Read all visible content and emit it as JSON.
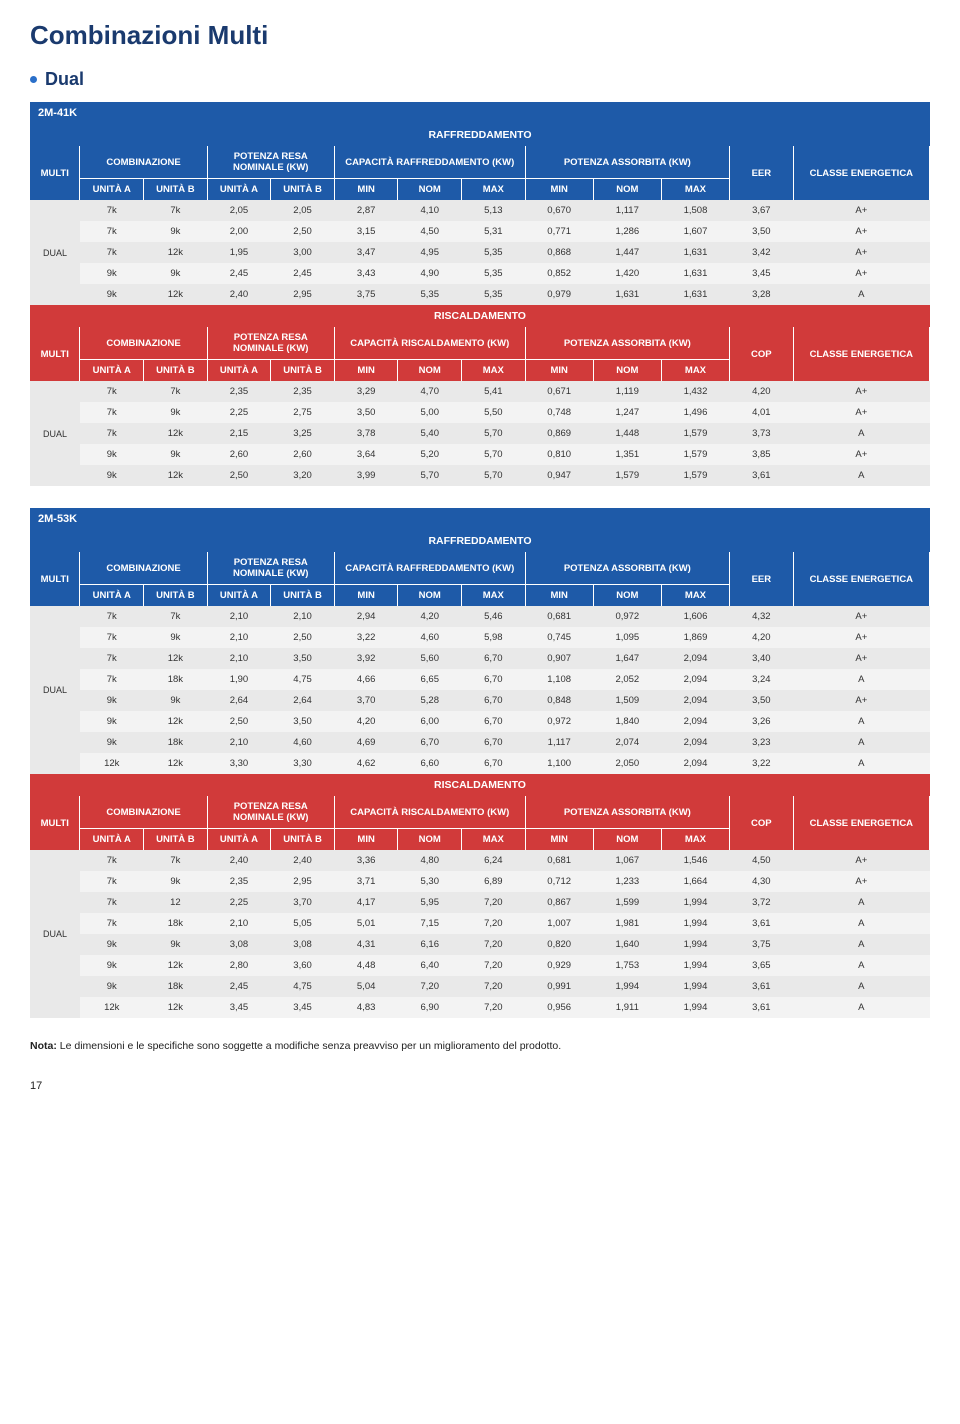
{
  "page": {
    "title": "Combinazioni Multi",
    "subtitle": "Dual",
    "note_bold": "Nota:",
    "note_text": " Le dimensioni e le specifiche sono soggette a modifiche senza preavviso per un miglioramento del prodotto.",
    "page_num": "17"
  },
  "labels": {
    "multi": "MULTI",
    "comb": "COMBINAZIONE",
    "resa": "POTENZA RESA NOMINALE (KW)",
    "cap_cool": "CAPACITÀ RAFFREDDAMENTO (KW)",
    "cap_heat": "CAPACITÀ RISCALDAMENTO (KW)",
    "absorb": "POTENZA ASSORBITA (KW)",
    "eer": "EER",
    "cop": "COP",
    "class": "CLASSE ENERGETICA",
    "unitA": "UNITÀ A",
    "unitB": "UNITÀ B",
    "min": "MIN",
    "nom": "NOM",
    "max": "MAX",
    "raffr": "RAFFREDDAMENTO",
    "risc": "RISCALDAMENTO",
    "dual": "DUAL"
  },
  "tables": [
    {
      "model": "2M-41K",
      "cool_rows": [
        [
          "7k",
          "7k",
          "2,05",
          "2,05",
          "2,87",
          "4,10",
          "5,13",
          "0,670",
          "1,117",
          "1,508",
          "3,67",
          "A+"
        ],
        [
          "7k",
          "9k",
          "2,00",
          "2,50",
          "3,15",
          "4,50",
          "5,31",
          "0,771",
          "1,286",
          "1,607",
          "3,50",
          "A+"
        ],
        [
          "7k",
          "12k",
          "1,95",
          "3,00",
          "3,47",
          "4,95",
          "5,35",
          "0,868",
          "1,447",
          "1,631",
          "3,42",
          "A+"
        ],
        [
          "9k",
          "9k",
          "2,45",
          "2,45",
          "3,43",
          "4,90",
          "5,35",
          "0,852",
          "1,420",
          "1,631",
          "3,45",
          "A+"
        ],
        [
          "9k",
          "12k",
          "2,40",
          "2,95",
          "3,75",
          "5,35",
          "5,35",
          "0,979",
          "1,631",
          "1,631",
          "3,28",
          "A"
        ]
      ],
      "heat_rows": [
        [
          "7k",
          "7k",
          "2,35",
          "2,35",
          "3,29",
          "4,70",
          "5,41",
          "0,671",
          "1,119",
          "1,432",
          "4,20",
          "A+"
        ],
        [
          "7k",
          "9k",
          "2,25",
          "2,75",
          "3,50",
          "5,00",
          "5,50",
          "0,748",
          "1,247",
          "1,496",
          "4,01",
          "A+"
        ],
        [
          "7k",
          "12k",
          "2,15",
          "3,25",
          "3,78",
          "5,40",
          "5,70",
          "0,869",
          "1,448",
          "1,579",
          "3,73",
          "A"
        ],
        [
          "9k",
          "9k",
          "2,60",
          "2,60",
          "3,64",
          "5,20",
          "5,70",
          "0,810",
          "1,351",
          "1,579",
          "3,85",
          "A+"
        ],
        [
          "9k",
          "12k",
          "2,50",
          "3,20",
          "3,99",
          "5,70",
          "5,70",
          "0,947",
          "1,579",
          "1,579",
          "3,61",
          "A"
        ]
      ]
    },
    {
      "model": "2M-53K",
      "cool_rows": [
        [
          "7k",
          "7k",
          "2,10",
          "2,10",
          "2,94",
          "4,20",
          "5,46",
          "0,681",
          "0,972",
          "1,606",
          "4,32",
          "A+"
        ],
        [
          "7k",
          "9k",
          "2,10",
          "2,50",
          "3,22",
          "4,60",
          "5,98",
          "0,745",
          "1,095",
          "1,869",
          "4,20",
          "A+"
        ],
        [
          "7k",
          "12k",
          "2,10",
          "3,50",
          "3,92",
          "5,60",
          "6,70",
          "0,907",
          "1,647",
          "2,094",
          "3,40",
          "A+"
        ],
        [
          "7k",
          "18k",
          "1,90",
          "4,75",
          "4,66",
          "6,65",
          "6,70",
          "1,108",
          "2,052",
          "2,094",
          "3,24",
          "A"
        ],
        [
          "9k",
          "9k",
          "2,64",
          "2,64",
          "3,70",
          "5,28",
          "6,70",
          "0,848",
          "1,509",
          "2,094",
          "3,50",
          "A+"
        ],
        [
          "9k",
          "12k",
          "2,50",
          "3,50",
          "4,20",
          "6,00",
          "6,70",
          "0,972",
          "1,840",
          "2,094",
          "3,26",
          "A"
        ],
        [
          "9k",
          "18k",
          "2,10",
          "4,60",
          "4,69",
          "6,70",
          "6,70",
          "1,117",
          "2,074",
          "2,094",
          "3,23",
          "A"
        ],
        [
          "12k",
          "12k",
          "3,30",
          "3,30",
          "4,62",
          "6,60",
          "6,70",
          "1,100",
          "2,050",
          "2,094",
          "3,22",
          "A"
        ]
      ],
      "heat_rows": [
        [
          "7k",
          "7k",
          "2,40",
          "2,40",
          "3,36",
          "4,80",
          "6,24",
          "0,681",
          "1,067",
          "1,546",
          "4,50",
          "A+"
        ],
        [
          "7k",
          "9k",
          "2,35",
          "2,95",
          "3,71",
          "5,30",
          "6,89",
          "0,712",
          "1,233",
          "1,664",
          "4,30",
          "A+"
        ],
        [
          "7k",
          "12",
          "2,25",
          "3,70",
          "4,17",
          "5,95",
          "7,20",
          "0,867",
          "1,599",
          "1,994",
          "3,72",
          "A"
        ],
        [
          "7k",
          "18k",
          "2,10",
          "5,05",
          "5,01",
          "7,15",
          "7,20",
          "1,007",
          "1,981",
          "1,994",
          "3,61",
          "A"
        ],
        [
          "9k",
          "9k",
          "3,08",
          "3,08",
          "4,31",
          "6,16",
          "7,20",
          "0,820",
          "1,640",
          "1,994",
          "3,75",
          "A"
        ],
        [
          "9k",
          "12k",
          "2,80",
          "3,60",
          "4,48",
          "6,40",
          "7,20",
          "0,929",
          "1,753",
          "1,994",
          "3,65",
          "A"
        ],
        [
          "9k",
          "18k",
          "2,45",
          "4,75",
          "5,04",
          "7,20",
          "7,20",
          "0,991",
          "1,994",
          "1,994",
          "3,61",
          "A"
        ],
        [
          "12k",
          "12k",
          "3,45",
          "3,45",
          "4,83",
          "6,90",
          "7,20",
          "0,956",
          "1,911",
          "1,994",
          "3,61",
          "A"
        ]
      ]
    }
  ]
}
